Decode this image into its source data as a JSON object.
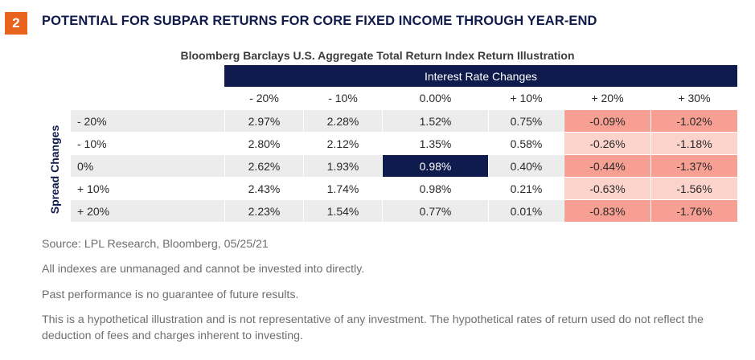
{
  "figure": {
    "number": "2",
    "title": "POTENTIAL FOR SUBPAR RETURNS FOR CORE FIXED INCOME THROUGH YEAR-END"
  },
  "colors": {
    "navy": "#101b4d",
    "badge_orange": "#e8641e",
    "neg_light": "#fcd3cb",
    "neg_strong": "#f69f92"
  },
  "chart_data": {
    "type": "table",
    "title": "Bloomberg Barclays U.S. Aggregate Total Return Index Return Illustration",
    "column_group_label": "Interest Rate Changes",
    "row_group_label": "Spread Changes",
    "columns": [
      "- 20%",
      "- 10%",
      "0.00%",
      "+ 10%",
      "+ 20%",
      "+ 30%"
    ],
    "rows": [
      {
        "label": "- 20%",
        "values": [
          "2.97%",
          "2.28%",
          "1.52%",
          "0.75%",
          "-0.09%",
          "-1.02%"
        ]
      },
      {
        "label": "- 10%",
        "values": [
          "2.80%",
          "2.12%",
          "1.35%",
          "0.58%",
          "-0.26%",
          "-1.18%"
        ]
      },
      {
        "label": "0%",
        "values": [
          "2.62%",
          "1.93%",
          "0.98%",
          "0.40%",
          "-0.44%",
          "-1.37%"
        ]
      },
      {
        "label": "+ 10%",
        "values": [
          "2.43%",
          "1.74%",
          "0.98%",
          "0.21%",
          "-0.63%",
          "-1.56%"
        ]
      },
      {
        "label": "+ 20%",
        "values": [
          "2.23%",
          "1.54%",
          "0.77%",
          "0.01%",
          "-0.83%",
          "-1.76%"
        ]
      }
    ],
    "highlight_cell": {
      "row": 2,
      "col": 2
    },
    "cell_fills": [
      [
        null,
        null,
        null,
        null,
        "neg_strong",
        "neg_strong"
      ],
      [
        null,
        null,
        null,
        null,
        "neg_light",
        "neg_light"
      ],
      [
        null,
        null,
        null,
        null,
        "neg_strong",
        "neg_strong"
      ],
      [
        null,
        null,
        null,
        null,
        "neg_light",
        "neg_light"
      ],
      [
        null,
        null,
        null,
        null,
        "neg_strong",
        "neg_strong"
      ]
    ]
  },
  "notes": {
    "source": "Source: LPL Research, Bloomberg,  05/25/21",
    "line1": "All indexes are unmanaged and cannot be invested into directly.",
    "line2": "Past performance is no guarantee of future results.",
    "line3": "This is a hypothetical illustration and is not representative of any investment. The hypothetical rates of return used do not reflect the deduction of fees and charges inherent to investing."
  }
}
